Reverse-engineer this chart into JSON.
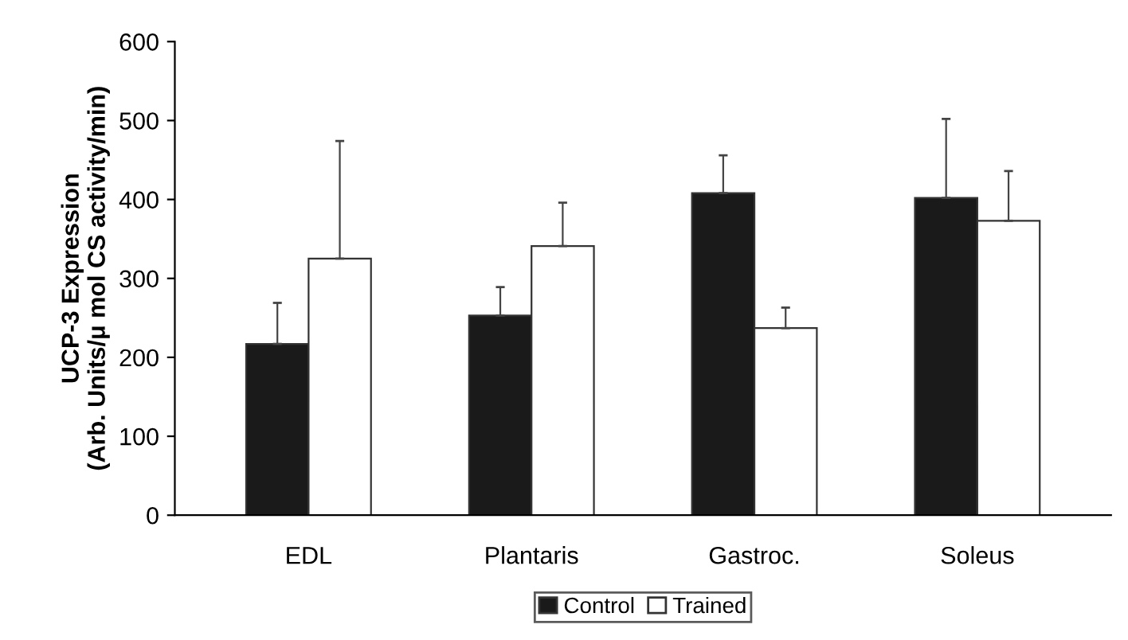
{
  "chart_data": {
    "type": "bar",
    "ylabel": "UCP-3 Expression\n(Arb. Units/μ mol CS activity/min)",
    "categories": [
      "EDL",
      "Plantaris",
      "Gastroc.",
      "Soleus"
    ],
    "series": [
      {
        "name": "Control",
        "color": "#1a1a1a",
        "values": [
          217,
          253,
          408,
          402
        ],
        "errors": [
          [
            217,
            269
          ],
          [
            253,
            289
          ],
          [
            408,
            456
          ],
          [
            402,
            502
          ]
        ]
      },
      {
        "name": "Trained",
        "color": "#ffffff",
        "values": [
          325,
          341,
          237,
          373
        ],
        "errors": [
          [
            325,
            474
          ],
          [
            341,
            396
          ],
          [
            237,
            263
          ],
          [
            373,
            436
          ]
        ]
      }
    ],
    "ylim": [
      0,
      600
    ],
    "yticks": [
      0,
      100,
      200,
      300,
      400,
      500,
      600
    ],
    "grid": false,
    "legend": "bottom"
  }
}
